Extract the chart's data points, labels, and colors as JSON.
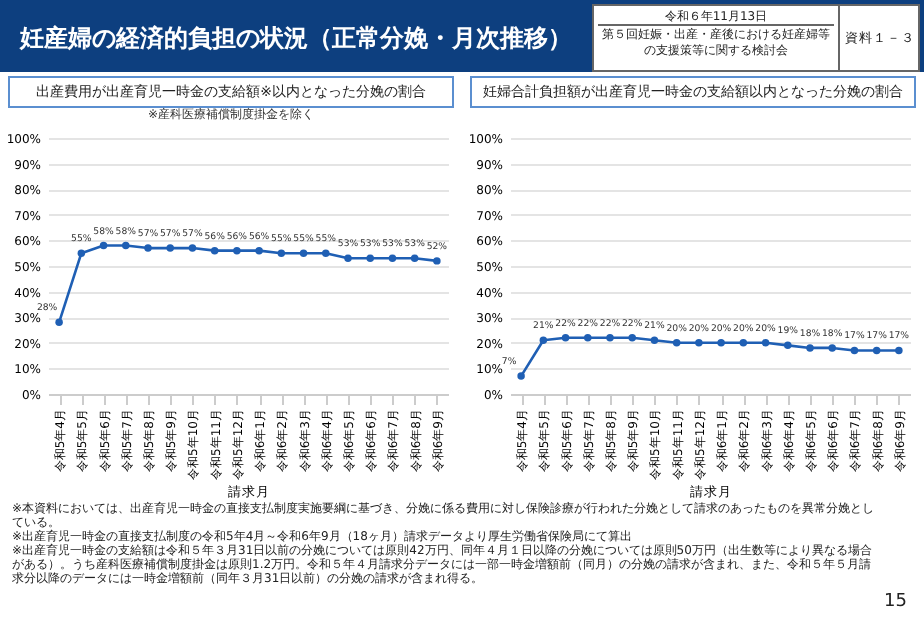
{
  "chart_data": [
    {
      "type": "line",
      "title": "出産費用が出産育児一時金の支給額※以内となった分娩の割合",
      "subtitle": "※産科医療補償制度掛金を除く",
      "xlabel": "請求月",
      "categories": [
        "令和5年4月",
        "令和5年5月",
        "令和5年6月",
        "令和5年7月",
        "令和5年8月",
        "令和5年9月",
        "令和5年10月",
        "令和5年11月",
        "令和5年12月",
        "令和6年1月",
        "令和6年2月",
        "令和6年3月",
        "令和6年4月",
        "令和6年5月",
        "令和6年6月",
        "令和6年7月",
        "令和6年8月",
        "令和6年9月"
      ],
      "series": [
        {
          "color": "#1f5fb4",
          "values": [
            28,
            55,
            58,
            58,
            57,
            57,
            57,
            56,
            56,
            56,
            55,
            55,
            55,
            53,
            53,
            53,
            53,
            52
          ],
          "value_labels": [
            "28%",
            "55%",
            "58%",
            "58%",
            "57%",
            "57%",
            "57%",
            "56%",
            "56%",
            "56%",
            "55%",
            "55%",
            "55%",
            "53%",
            "53%",
            "53%",
            "53%",
            "52%"
          ]
        }
      ],
      "ylim": [
        0,
        100
      ],
      "yticks": [
        {
          "value": 0,
          "label": "0%"
        },
        {
          "value": 10,
          "label": "10%"
        },
        {
          "value": 20,
          "label": "20%"
        },
        {
          "value": 30,
          "label": "30%"
        },
        {
          "value": 40,
          "label": "40%"
        },
        {
          "value": 50,
          "label": "50%"
        },
        {
          "value": 60,
          "label": "60%"
        },
        {
          "value": 70,
          "label": "70%"
        },
        {
          "value": 80,
          "label": "80%"
        },
        {
          "value": 90,
          "label": "90%"
        },
        {
          "value": 100,
          "label": "100%"
        }
      ],
      "grid": "y",
      "marker": "circle",
      "line_style": "solid",
      "annotations": [
        "妊産婦の経済的負担の状況（正常分娩・月次推移）",
        "令和６年11月13日",
        "第５回妊娠・出産・産後における妊産婦等の支援策等に関する検討会",
        "資料１－３"
      ]
    },
    {
      "type": "line",
      "title": "妊婦合計負担額が出産育児一時金の支給額以内となった分娩の割合",
      "xlabel": "請求月",
      "categories": [
        "令和5年4月",
        "令和5年5月",
        "令和5年6月",
        "令和5年7月",
        "令和5年8月",
        "令和5年9月",
        "令和5年10月",
        "令和5年11月",
        "令和5年12月",
        "令和6年1月",
        "令和6年2月",
        "令和6年3月",
        "令和6年4月",
        "令和6年5月",
        "令和6年6月",
        "令和6年7月",
        "令和6年8月",
        "令和6年9月"
      ],
      "series": [
        {
          "color": "#1f5fb4",
          "values": [
            7,
            21,
            22,
            22,
            22,
            22,
            21,
            20,
            20,
            20,
            20,
            20,
            19,
            18,
            18,
            17,
            17,
            17
          ],
          "value_labels": [
            "7%",
            "21%",
            "22%",
            "22%",
            "22%",
            "22%",
            "21%",
            "20%",
            "20%",
            "20%",
            "20%",
            "20%",
            "19%",
            "18%",
            "18%",
            "17%",
            "17%",
            "17%"
          ]
        }
      ],
      "ylim": [
        0,
        100
      ],
      "yticks": [
        {
          "value": 0,
          "label": "0%"
        },
        {
          "value": 10,
          "label": "10%"
        },
        {
          "value": 20,
          "label": "20%"
        },
        {
          "value": 30,
          "label": "30%"
        },
        {
          "value": 40,
          "label": "40%"
        },
        {
          "value": 50,
          "label": "50%"
        },
        {
          "value": 60,
          "label": "60%"
        },
        {
          "value": 70,
          "label": "70%"
        },
        {
          "value": 80,
          "label": "80%"
        },
        {
          "value": 90,
          "label": "90%"
        },
        {
          "value": 100,
          "label": "100%"
        }
      ],
      "grid": "y",
      "marker": "circle",
      "line_style": "solid",
      "annotations": [
        "※本資料においては、出産育児一時金の直接支払制度実施要綱に基づき、分娩に係る費用に対し保険診療が行われた分娩として請求のあったものを異常分娩としている。",
        "※出産育児一時金の直接支払制度の令和5年4月～令和6年9月（18ヶ月）請求データより厚生労働省保険局にて算出",
        "※出産育児一時金の支給額は令和５年３月31日以前の分娩については原則42万円、同年４月１日以降の分娩については原則50万円（出生数等により異なる場合がある）。うち産科医療補償制度掛金は原則1.2万円。令和５年４月請求分データには一部一時金増額前（同月）の分娩の請求が含まれ、また、令和５年５月請求分以降のデータには一時金増額前（同年３月31日以前）の分娩の請求が含まれ得る。",
        "15"
      ]
    }
  ]
}
